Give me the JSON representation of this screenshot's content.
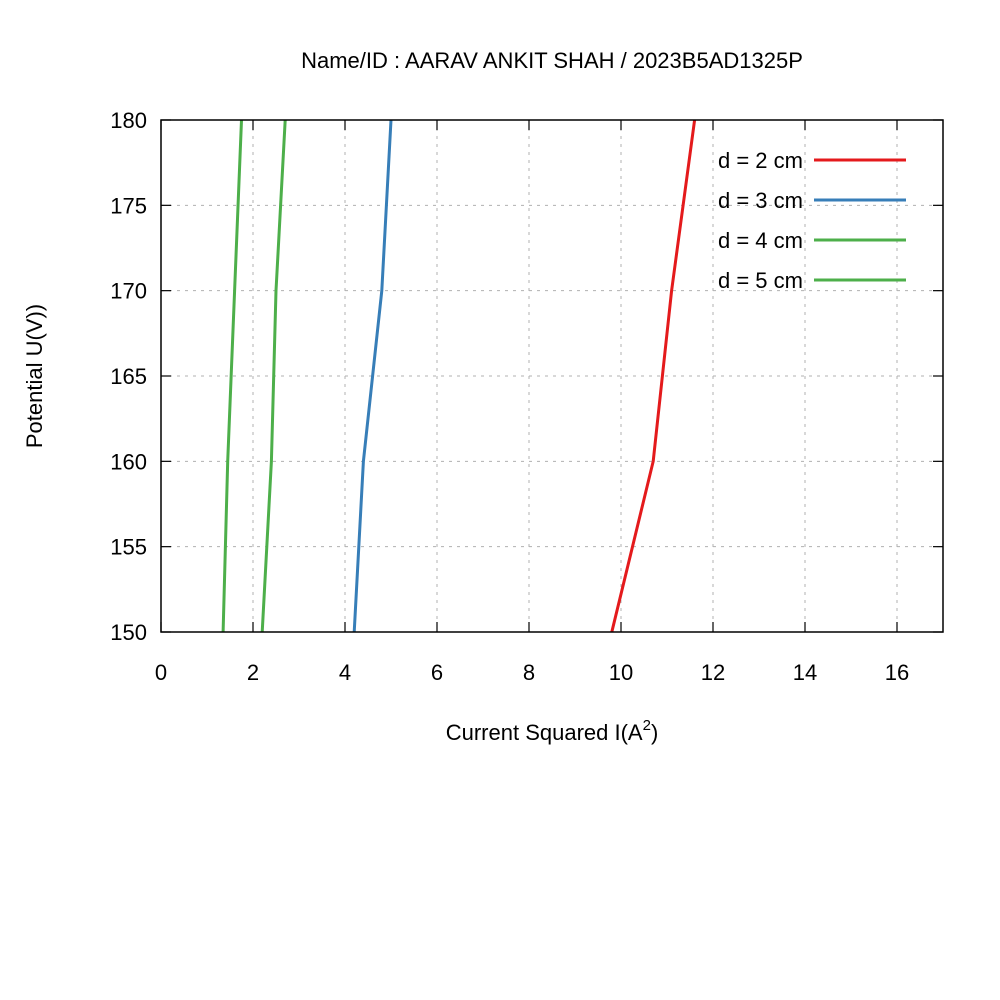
{
  "chart_data": {
    "type": "line",
    "title": "Name/ID : AARAV ANKIT SHAH / 2023B5AD1325P",
    "xlabel": "Current Squared I(A",
    "xlabel_sup": "2",
    "xlabel_end": ")",
    "ylabel": "Potential U(V))",
    "xlim": [
      0,
      17
    ],
    "ylim": [
      150,
      180
    ],
    "xticks": [
      "0",
      "2",
      "4",
      "6",
      "8",
      "10",
      "12",
      "14",
      "16"
    ],
    "yticks": [
      "150",
      "155",
      "160",
      "165",
      "170",
      "175",
      "180"
    ],
    "grid": true,
    "legend_position": "top-right",
    "series": [
      {
        "name": "d = 2 cm",
        "color": "#e41a1c",
        "points": [
          [
            9.8,
            150
          ],
          [
            10.7,
            160
          ],
          [
            11.1,
            170
          ],
          [
            11.6,
            180
          ]
        ]
      },
      {
        "name": "d = 3 cm",
        "color": "#377eb8",
        "points": [
          [
            4.2,
            150
          ],
          [
            4.4,
            160
          ],
          [
            4.8,
            170
          ],
          [
            5.0,
            180
          ]
        ]
      },
      {
        "name": "d = 4 cm",
        "color": "#4daf4a",
        "points": [
          [
            2.2,
            150
          ],
          [
            2.4,
            160
          ],
          [
            2.5,
            170
          ],
          [
            2.7,
            180
          ]
        ]
      },
      {
        "name": "d = 5 cm",
        "color": "#4daf4a",
        "points": [
          [
            1.35,
            150
          ],
          [
            1.45,
            160
          ],
          [
            1.6,
            170
          ],
          [
            1.75,
            180
          ]
        ]
      }
    ]
  }
}
